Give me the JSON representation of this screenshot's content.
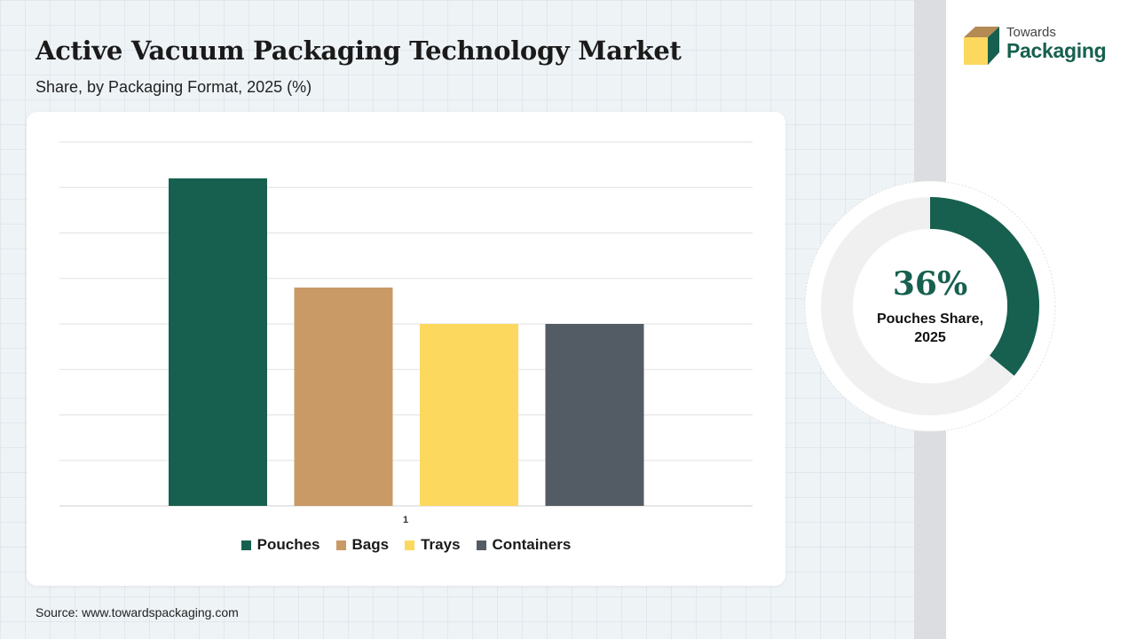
{
  "title": "Active Vacuum Packaging Technology Market",
  "subtitle": "Share, by Packaging Format, 2025 (%)",
  "source": "Source: www.towardspackaging.com",
  "logo": {
    "line1": "Towards",
    "line2": "Packaging"
  },
  "highlight": {
    "value": "36%",
    "label": "Pouches Share, 2025",
    "fraction": 0.36
  },
  "colors": {
    "pouches": "#17604f",
    "bags": "#c99966",
    "trays": "#fdd85e",
    "containers": "#535b64",
    "accent": "#17604f"
  },
  "chart_data": {
    "type": "bar",
    "categories": [
      "1"
    ],
    "series": [
      {
        "name": "Pouches",
        "values": [
          36
        ],
        "color": "#17604f"
      },
      {
        "name": "Bags",
        "values": [
          24
        ],
        "color": "#c99966"
      },
      {
        "name": "Trays",
        "values": [
          20
        ],
        "color": "#fdd85e"
      },
      {
        "name": "Containers",
        "values": [
          20
        ],
        "color": "#535b64"
      }
    ],
    "ylim": [
      0,
      40
    ],
    "grid": true,
    "legend": "bottom",
    "title": "",
    "xlabel": "",
    "ylabel": ""
  }
}
